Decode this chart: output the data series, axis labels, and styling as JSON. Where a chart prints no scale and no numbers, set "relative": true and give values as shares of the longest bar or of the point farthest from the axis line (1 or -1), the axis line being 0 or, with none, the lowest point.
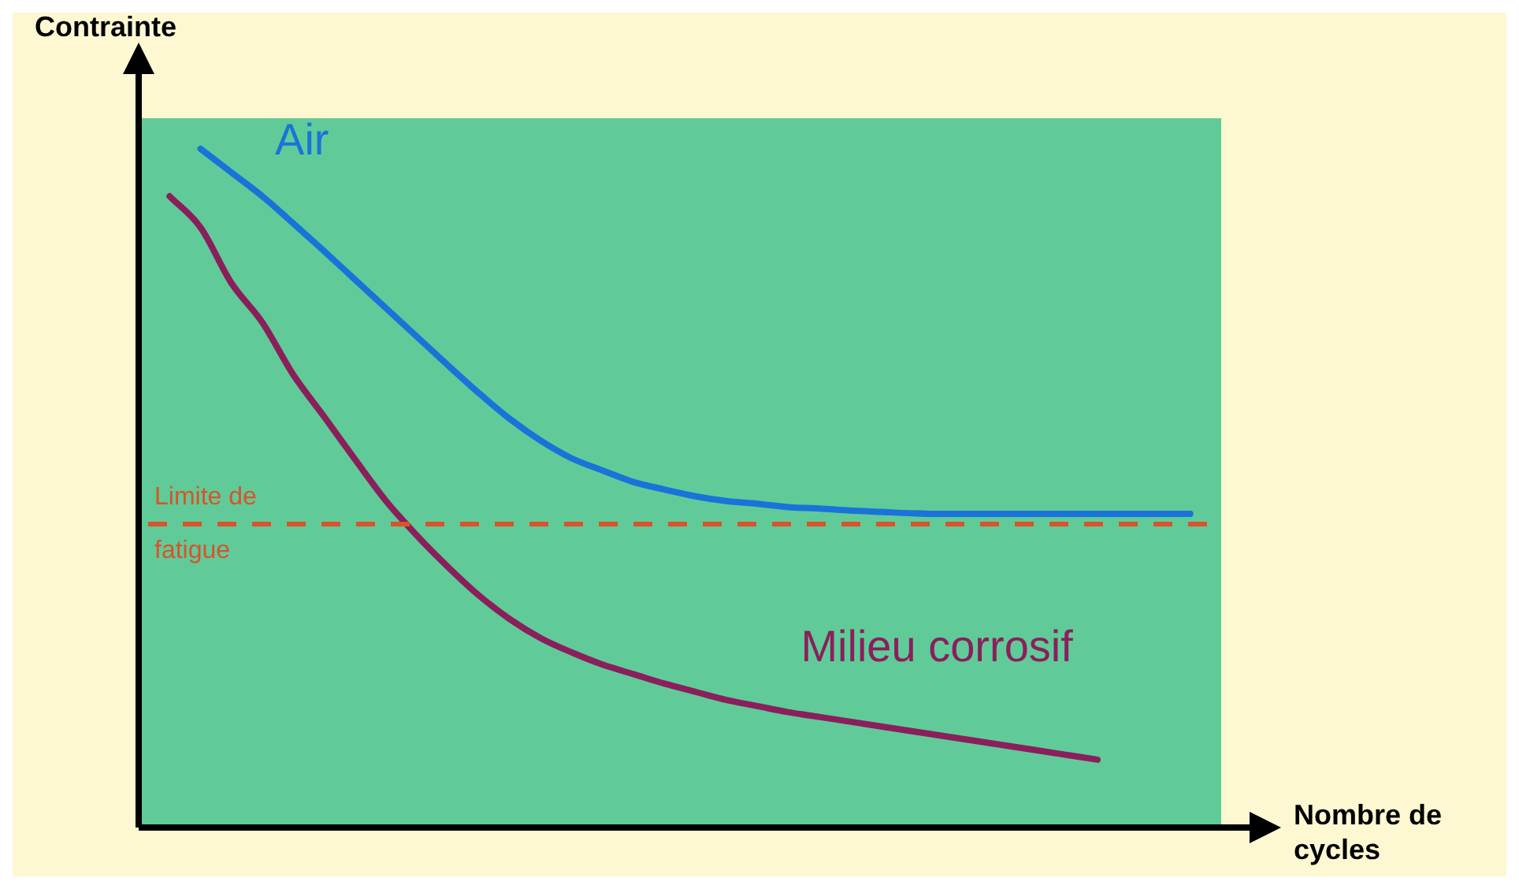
{
  "chart_data": {
    "type": "line",
    "xlabel": "Nombre de cycles",
    "ylabel": "Contrainte",
    "relative": true,
    "grid": false,
    "legend": false,
    "marker": "none",
    "line_style": "solid",
    "categories": [
      null,
      null,
      null,
      null,
      null,
      null,
      null,
      null,
      null,
      null,
      null,
      null,
      null,
      null,
      null,
      null,
      null,
      null,
      null,
      null,
      null,
      null,
      null,
      null,
      null,
      null,
      null,
      null,
      null,
      null,
      null,
      null,
      null,
      null,
      null,
      null
    ],
    "series": [
      {
        "name": "Air",
        "color": "#1a73d9",
        "values": [
          null,
          null,
          1,
          0.965,
          0.93,
          0.89,
          0.849,
          0.807,
          0.765,
          0.723,
          0.681,
          0.64,
          0.602,
          0.57,
          0.544,
          0.526,
          0.509,
          0.498,
          0.488,
          0.481,
          0.477,
          0.472,
          0.47,
          0.467,
          0.465,
          0.463,
          0.462,
          0.462,
          0.462,
          0.462,
          0.462,
          0.462,
          0.462,
          0.462,
          0.462,
          null
        ]
      },
      {
        "name": "Milieu corrosif",
        "color": "#8a1f5c",
        "values": [
          null,
          0.93,
          0.884,
          0.802,
          0.744,
          0.667,
          0.605,
          0.542,
          0.481,
          0.43,
          0.384,
          0.342,
          0.307,
          0.279,
          0.258,
          0.24,
          0.226,
          0.212,
          0.2,
          0.188,
          0.179,
          0.17,
          0.163,
          0.156,
          0.149,
          0.142,
          0.135,
          0.128,
          0.121,
          0.114,
          0.107,
          0.1,
          null,
          null,
          null,
          null
        ]
      }
    ],
    "ref_lines": [
      {
        "axis": "y",
        "value": 0.447,
        "label": "Limite de fatigue",
        "color": "#d9532b",
        "line_style": "dashed"
      }
    ]
  }
}
